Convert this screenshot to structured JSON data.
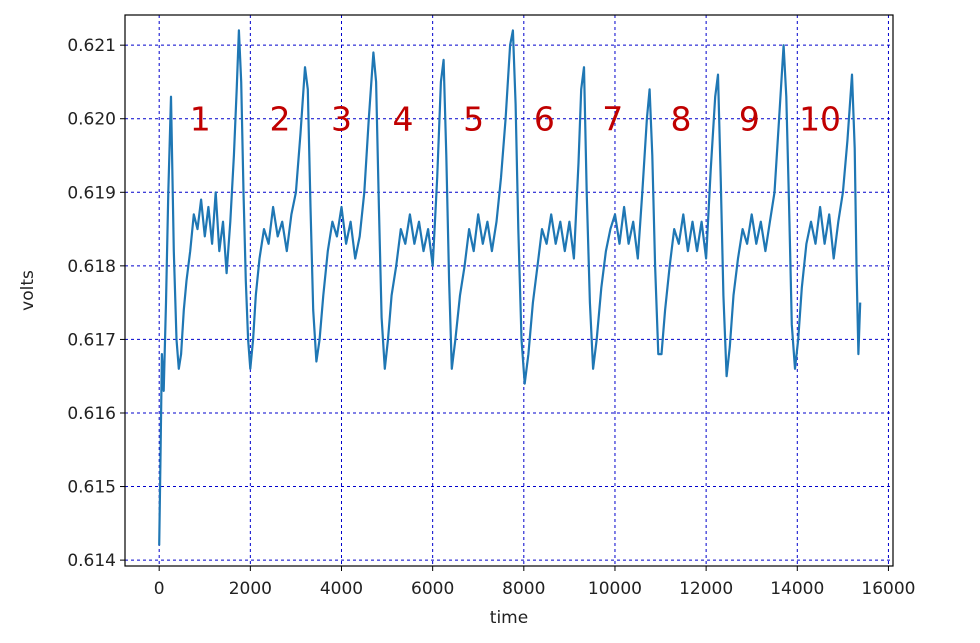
{
  "chart_data": {
    "type": "line",
    "title": "",
    "xlabel": "time",
    "ylabel": "volts",
    "xlim": [
      -750,
      16100
    ],
    "ylim": [
      0.61392,
      0.62141
    ],
    "x_ticks": [
      0,
      2000,
      4000,
      6000,
      8000,
      10000,
      12000,
      14000,
      16000
    ],
    "y_ticks": [
      0.614,
      0.615,
      0.616,
      0.617,
      0.618,
      0.619,
      0.62,
      0.621
    ],
    "x_tick_labels": [
      "0",
      "2000",
      "4000",
      "6000",
      "8000",
      "10000",
      "12000",
      "14000",
      "16000"
    ],
    "y_tick_labels": [
      "0.614",
      "0.615",
      "0.616",
      "0.617",
      "0.618",
      "0.619",
      "0.620",
      "0.621"
    ],
    "grid": true,
    "grid_color": "#0000cc",
    "line_color": "#1f77b4",
    "annotation_color": "#c00000",
    "series": [
      {
        "x": [
          0,
          30,
          60,
          100,
          150,
          200,
          260,
          320,
          380,
          430,
          480,
          540,
          600,
          680,
          760,
          840,
          920,
          1000,
          1080,
          1160,
          1240,
          1320,
          1400,
          1480,
          1560,
          1640,
          1700,
          1750,
          1800,
          1850,
          1900,
          1950,
          2000,
          2060,
          2120,
          2200,
          2300,
          2400,
          2500,
          2600,
          2700,
          2800,
          2900,
          3000,
          3100,
          3200,
          3260,
          3320,
          3380,
          3450,
          3520,
          3600,
          3700,
          3800,
          3900,
          4000,
          4100,
          4200,
          4300,
          4400,
          4500,
          4600,
          4700,
          4760,
          4820,
          4880,
          4950,
          5020,
          5100,
          5200,
          5300,
          5400,
          5500,
          5600,
          5700,
          5800,
          5900,
          6000,
          6100,
          6180,
          6240,
          6300,
          6360,
          6420,
          6500,
          6600,
          6700,
          6800,
          6900,
          7000,
          7100,
          7200,
          7300,
          7400,
          7500,
          7600,
          7700,
          7760,
          7820,
          7880,
          7950,
          8020,
          8100,
          8200,
          8300,
          8400,
          8500,
          8600,
          8700,
          8800,
          8900,
          9000,
          9100,
          9200,
          9260,
          9320,
          9380,
          9450,
          9520,
          9600,
          9700,
          9800,
          9900,
          10000,
          10100,
          10200,
          10300,
          10400,
          10500,
          10600,
          10700,
          10760,
          10820,
          10880,
          10950,
          11020,
          11100,
          11200,
          11300,
          11400,
          11500,
          11600,
          11700,
          11800,
          11900,
          12000,
          12100,
          12200,
          12260,
          12320,
          12380,
          12450,
          12520,
          12600,
          12700,
          12800,
          12900,
          13000,
          13100,
          13200,
          13300,
          13400,
          13500,
          13600,
          13700,
          13760,
          13820,
          13880,
          13950,
          14020,
          14100,
          14200,
          14300,
          14400,
          14500,
          14600,
          14700,
          14800,
          14900,
          15000,
          15100,
          15200,
          15260,
          15300,
          15340,
          15380
        ],
        "y": [
          0.6142,
          0.6155,
          0.6168,
          0.6163,
          0.6175,
          0.619,
          0.6203,
          0.6182,
          0.617,
          0.6166,
          0.6168,
          0.6174,
          0.6178,
          0.6182,
          0.6187,
          0.6185,
          0.6189,
          0.6184,
          0.6188,
          0.6183,
          0.619,
          0.6182,
          0.6186,
          0.6179,
          0.6186,
          0.6195,
          0.6204,
          0.6212,
          0.6205,
          0.619,
          0.6178,
          0.617,
          0.6166,
          0.617,
          0.6176,
          0.6181,
          0.6185,
          0.6183,
          0.6188,
          0.6184,
          0.6186,
          0.6182,
          0.6187,
          0.619,
          0.6198,
          0.6207,
          0.6204,
          0.6188,
          0.6174,
          0.6167,
          0.617,
          0.6176,
          0.6182,
          0.6186,
          0.6184,
          0.6188,
          0.6183,
          0.6186,
          0.6181,
          0.6184,
          0.619,
          0.62,
          0.6209,
          0.6205,
          0.6188,
          0.6173,
          0.6166,
          0.617,
          0.6176,
          0.618,
          0.6185,
          0.6183,
          0.6187,
          0.6183,
          0.6186,
          0.6182,
          0.6185,
          0.618,
          0.6192,
          0.6205,
          0.6208,
          0.6195,
          0.6178,
          0.6166,
          0.617,
          0.6176,
          0.618,
          0.6185,
          0.6182,
          0.6187,
          0.6183,
          0.6186,
          0.6182,
          0.6186,
          0.6192,
          0.62,
          0.621,
          0.6212,
          0.6202,
          0.6185,
          0.617,
          0.6164,
          0.6168,
          0.6175,
          0.618,
          0.6185,
          0.6183,
          0.6187,
          0.6183,
          0.6186,
          0.6182,
          0.6186,
          0.6181,
          0.6194,
          0.6204,
          0.6207,
          0.619,
          0.6175,
          0.6166,
          0.617,
          0.6177,
          0.6182,
          0.6185,
          0.6187,
          0.6183,
          0.6188,
          0.6183,
          0.6186,
          0.6181,
          0.619,
          0.62,
          0.6204,
          0.6195,
          0.618,
          0.6168,
          0.6168,
          0.6174,
          0.618,
          0.6185,
          0.6183,
          0.6187,
          0.6182,
          0.6186,
          0.6182,
          0.6186,
          0.6181,
          0.6193,
          0.6203,
          0.6206,
          0.6192,
          0.6176,
          0.6165,
          0.6169,
          0.6176,
          0.6181,
          0.6185,
          0.6183,
          0.6187,
          0.6183,
          0.6186,
          0.6182,
          0.6186,
          0.619,
          0.62,
          0.621,
          0.6203,
          0.6188,
          0.6172,
          0.6166,
          0.617,
          0.6177,
          0.6183,
          0.6186,
          0.6183,
          0.6188,
          0.6183,
          0.6187,
          0.6181,
          0.6186,
          0.619,
          0.6197,
          0.6206,
          0.6196,
          0.618,
          0.6168,
          0.6175
        ]
      }
    ],
    "annotations": [
      {
        "text": "1",
        "x": 900,
        "y": 0.62
      },
      {
        "text": "2",
        "x": 2650,
        "y": 0.62
      },
      {
        "text": "3",
        "x": 4000,
        "y": 0.62
      },
      {
        "text": "4",
        "x": 5350,
        "y": 0.62
      },
      {
        "text": "5",
        "x": 6900,
        "y": 0.62
      },
      {
        "text": "6",
        "x": 8450,
        "y": 0.62
      },
      {
        "text": "7",
        "x": 9950,
        "y": 0.62
      },
      {
        "text": "8",
        "x": 11450,
        "y": 0.62
      },
      {
        "text": "9",
        "x": 12950,
        "y": 0.62
      },
      {
        "text": "10",
        "x": 14500,
        "y": 0.62
      }
    ]
  }
}
